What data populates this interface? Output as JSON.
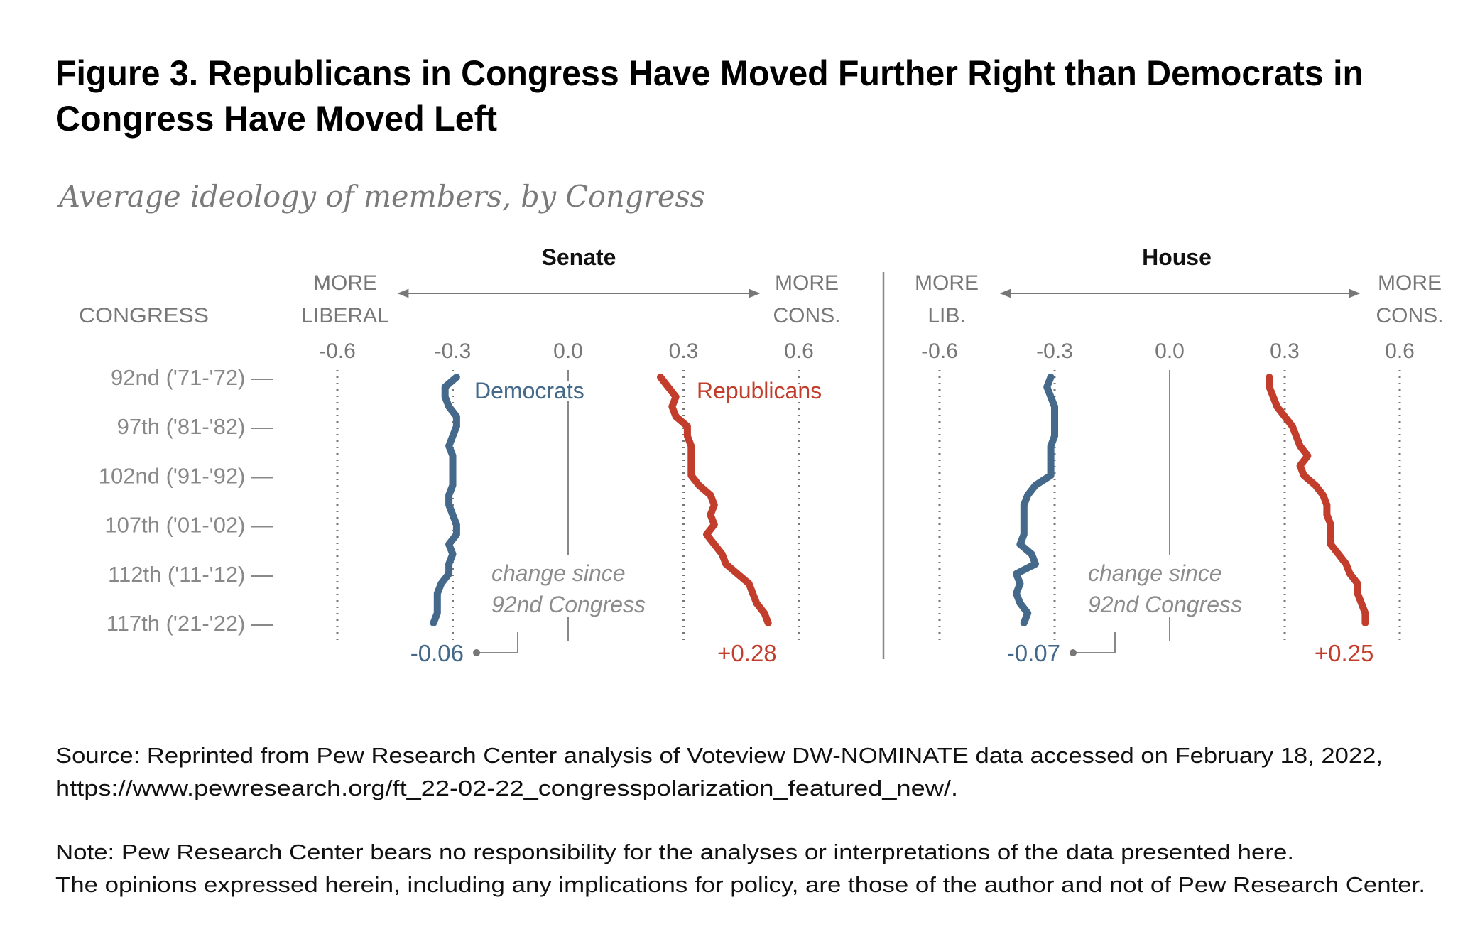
{
  "title_line1": "Figure 3. Republicans in Congress Have Moved Further Right than Democrats in",
  "title_line2": "Congress Have Moved Left",
  "subtitle": "Average ideology of members, by Congress",
  "congress_header": "CONGRESS",
  "row_labels": [
    "92nd ('71-'72) —",
    "97th ('81-'82) —",
    "102nd ('91-'92) —",
    "107th ('01-'02) —",
    "112th ('11-'12) —",
    "117th ('21-'22) —"
  ],
  "annotation_line1": "change since",
  "annotation_line2": "92nd Congress",
  "colors": {
    "democrats": "#44698a",
    "republicans": "#c23d2b"
  },
  "source_line1": "Source: Reprinted from Pew Research Center analysis of Voteview DW-NOMINATE data accessed on February 18, 2022,",
  "source_line2": "https://www.pewresearch.org/ft_22-02-22_congresspolarization_featured_new/.",
  "note_line1": "Note: Pew Research Center bears no responsibility for the analyses or interpretations of the data presented here.",
  "note_line2": "The opinions expressed herein, including any implications for policy, are those of the author and not of Pew Research Center.",
  "chart_data": [
    {
      "type": "line",
      "title": "Senate",
      "left_label": [
        "MORE",
        "LIBERAL"
      ],
      "right_label": [
        "MORE",
        "CONS."
      ],
      "xticks": [
        "-0.6",
        "-0.3",
        "0.0",
        "0.3",
        "0.6"
      ],
      "xlim": [
        -0.6,
        0.6
      ],
      "congress": [
        92,
        93,
        94,
        95,
        96,
        97,
        98,
        99,
        100,
        101,
        102,
        103,
        104,
        105,
        106,
        107,
        108,
        109,
        110,
        111,
        112,
        113,
        114,
        115,
        116,
        117
      ],
      "series": [
        {
          "name": "Democrats",
          "change": "-0.06",
          "values": [
            -0.29,
            -0.32,
            -0.32,
            -0.31,
            -0.29,
            -0.29,
            -0.3,
            -0.31,
            -0.3,
            -0.3,
            -0.3,
            -0.3,
            -0.31,
            -0.31,
            -0.3,
            -0.29,
            -0.29,
            -0.31,
            -0.3,
            -0.31,
            -0.31,
            -0.33,
            -0.34,
            -0.34,
            -0.34,
            -0.35
          ]
        },
        {
          "name": "Republicans",
          "change": "+0.28",
          "values": [
            0.24,
            0.26,
            0.28,
            0.27,
            0.28,
            0.31,
            0.31,
            0.32,
            0.32,
            0.32,
            0.32,
            0.34,
            0.37,
            0.38,
            0.37,
            0.38,
            0.36,
            0.38,
            0.4,
            0.41,
            0.44,
            0.47,
            0.48,
            0.49,
            0.51,
            0.52
          ]
        }
      ]
    },
    {
      "type": "line",
      "title": "House",
      "left_label": [
        "MORE",
        "LIB."
      ],
      "right_label": [
        "MORE",
        "CONS."
      ],
      "xticks": [
        "-0.6",
        "-0.3",
        "0.0",
        "0.3",
        "0.6"
      ],
      "xlim": [
        -0.6,
        0.6
      ],
      "congress": [
        92,
        93,
        94,
        95,
        96,
        97,
        98,
        99,
        100,
        101,
        102,
        103,
        104,
        105,
        106,
        107,
        108,
        109,
        110,
        111,
        112,
        113,
        114,
        115,
        116,
        117
      ],
      "series": [
        {
          "change": "-0.07",
          "values": [
            -0.31,
            -0.32,
            -0.31,
            -0.3,
            -0.3,
            -0.3,
            -0.3,
            -0.31,
            -0.31,
            -0.31,
            -0.31,
            -0.35,
            -0.37,
            -0.38,
            -0.38,
            -0.38,
            -0.38,
            -0.39,
            -0.36,
            -0.35,
            -0.4,
            -0.39,
            -0.4,
            -0.39,
            -0.37,
            -0.38
          ]
        },
        {
          "change": "+0.25",
          "values": [
            0.26,
            0.26,
            0.27,
            0.28,
            0.3,
            0.32,
            0.33,
            0.34,
            0.36,
            0.34,
            0.35,
            0.38,
            0.4,
            0.41,
            0.41,
            0.42,
            0.42,
            0.42,
            0.44,
            0.46,
            0.47,
            0.49,
            0.49,
            0.5,
            0.51,
            0.51
          ]
        }
      ]
    }
  ]
}
